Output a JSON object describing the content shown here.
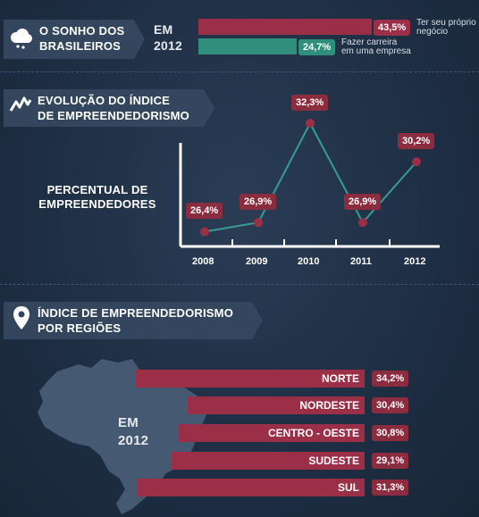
{
  "section1": {
    "title_lines": [
      "O SONHO DOS",
      "BRASILEIROS"
    ],
    "year_lines": [
      "EM",
      "2012"
    ],
    "items": [
      {
        "value_label": "43,5%",
        "value": 43.5,
        "label_lines": [
          "Ter seu próprio",
          "negócio"
        ],
        "color": "#9b2f47"
      },
      {
        "value_label": "24,7%",
        "value": 24.7,
        "label_lines": [
          "Fazer carreira",
          "em uma empresa"
        ],
        "color": "#2f8f7c"
      }
    ]
  },
  "section2": {
    "title_lines": [
      "EVOLUÇÃO DO ÍNDICE",
      "DE EMPREENDEDORISMO"
    ],
    "ylabel_lines": [
      "PERCENTUAL DE",
      "EMPREENDEDORES"
    ]
  },
  "section3": {
    "title_lines": [
      "ÍNDICE DE EMPREENDEDORISMO",
      "POR REGIÕES"
    ],
    "map_year_lines": [
      "EM",
      "2012"
    ]
  },
  "colors": {
    "bar": "#9b2f47",
    "line": "#3a9c91",
    "marker": "#9b2f47",
    "panel": "#33465d"
  },
  "chart_data": [
    {
      "type": "bar",
      "title": "O SONHO DOS BRASILEIROS",
      "categories": [
        "Ter seu próprio negócio",
        "Fazer carreira em uma empresa"
      ],
      "values": [
        43.5,
        24.7
      ],
      "value_labels": [
        "43,5%",
        "24,7%"
      ]
    },
    {
      "type": "line",
      "title": "EVOLUÇÃO DO ÍNDICE DE EMPREENDEDORISMO",
      "ylabel": "PERCENTUAL DE EMPREENDEDORES",
      "x": [
        "2008",
        "2009",
        "2010",
        "2011",
        "2012"
      ],
      "values": [
        26.4,
        26.9,
        32.3,
        26.9,
        30.2
      ],
      "value_labels": [
        "26,4%",
        "26,9%",
        "32,3%",
        "26,9%",
        "30,2%"
      ],
      "ylim": [
        25,
        33
      ]
    },
    {
      "type": "bar",
      "title": "ÍNDICE DE EMPREENDEDORISMO POR REGIÕES",
      "categories": [
        "NORTE",
        "NORDESTE",
        "CENTRO - OESTE",
        "SUDESTE",
        "SUL"
      ],
      "values": [
        34.2,
        30.4,
        30.8,
        29.1,
        31.3
      ],
      "value_labels": [
        "34,2%",
        "30,4%",
        "30,8%",
        "29,1%",
        "31,3%"
      ]
    }
  ]
}
